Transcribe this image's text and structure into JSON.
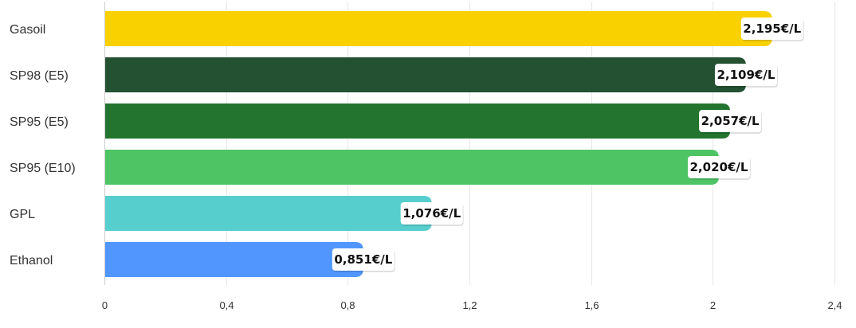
{
  "chart_data": {
    "type": "bar",
    "orientation": "horizontal",
    "categories": [
      "Gasoil",
      "SP98 (E5)",
      "SP95 (E5)",
      "SP95 (E10)",
      "GPL",
      "Ethanol"
    ],
    "values": [
      2.195,
      2.109,
      2.057,
      2.02,
      1.076,
      0.851
    ],
    "value_labels": [
      "2,195€/L",
      "2,109€/L",
      "2,057€/L",
      "2,020€/L",
      "1,076€/L",
      "0,851€/L"
    ],
    "colors": [
      "#f9d000",
      "#235131",
      "#22742e",
      "#4ec465",
      "#56cece",
      "#5196ff"
    ],
    "xlim": [
      0,
      2.4
    ],
    "x_ticks": [
      0,
      0.4,
      0.8,
      1.2,
      1.6,
      2,
      2.4
    ],
    "x_tick_labels": [
      "0",
      "0,4",
      "0,8",
      "1,2",
      "1,6",
      "2",
      "2,4"
    ],
    "grid": true,
    "title": "",
    "xlabel": "",
    "ylabel": ""
  }
}
